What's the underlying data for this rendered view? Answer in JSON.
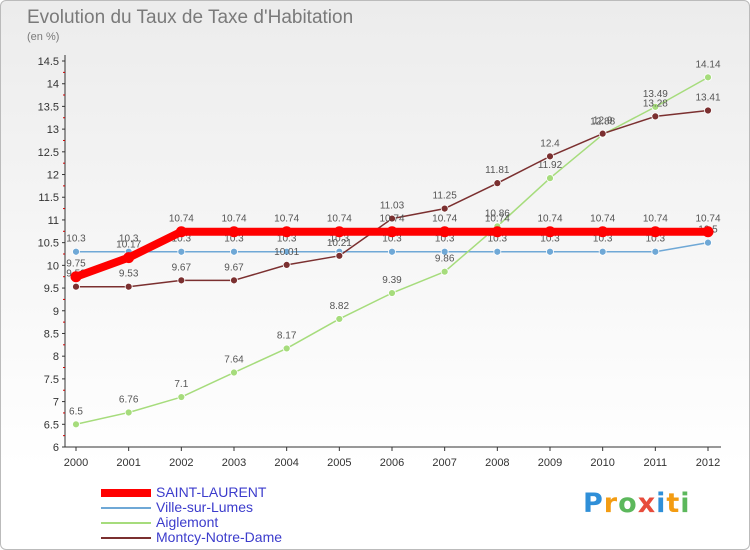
{
  "title": "Evolution du Taux de Taxe d'Habitation",
  "subtitle": "(en %)",
  "logo": {
    "letters": [
      "P",
      "r",
      "o",
      "x",
      "i",
      "t",
      "i"
    ],
    "colors": [
      "#2f8fd8",
      "#f39c12",
      "#5cb85c",
      "#e74c3c",
      "#2f8fd8",
      "#f39c12",
      "#5cb85c"
    ]
  },
  "chart_data": {
    "type": "line",
    "title": "Evolution du Taux de Taxe d'Habitation",
    "ylabel": "(en %)",
    "x": [
      "2000",
      "2001",
      "2002",
      "2003",
      "2004",
      "2005",
      "2006",
      "2007",
      "2008",
      "2009",
      "2010",
      "2011",
      "2012"
    ],
    "ylim": [
      6,
      14.5
    ],
    "yticks": [
      "6",
      "6.5",
      "7",
      "7.5",
      "8",
      "8.5",
      "9",
      "9.5",
      "10",
      "10.5",
      "11",
      "11.5",
      "12",
      "12.5",
      "13",
      "13.5",
      "14",
      "14.5"
    ],
    "grid": false,
    "legend": "bottom-left",
    "series": [
      {
        "name": "SAINT-LAURENT",
        "color": "#ff0000",
        "values": [
          9.75,
          10.17,
          10.74,
          10.74,
          10.74,
          10.74,
          10.74,
          10.74,
          10.74,
          10.74,
          10.74,
          10.74,
          10.74
        ],
        "labels": [
          "9.75",
          "10.17",
          "10.74",
          "10.74",
          "10.74",
          "10.74",
          "10.74",
          "10.74",
          "10.74",
          "10.74",
          "10.74",
          "10.74",
          "10.74"
        ]
      },
      {
        "name": "Ville-sur-Lumes",
        "color": "#6fa8d6",
        "values": [
          10.3,
          10.3,
          10.3,
          10.3,
          10.3,
          10.3,
          10.3,
          10.3,
          10.3,
          10.3,
          10.3,
          10.3,
          10.5
        ],
        "labels": [
          "10.3",
          "10.3",
          "10.3",
          "10.3",
          "10.3",
          "10.3",
          "10.3",
          "10.3",
          "10.3",
          "10.3",
          "10.3",
          "10.3",
          "10.5"
        ]
      },
      {
        "name": "Aiglemont",
        "color": "#a6dc7c",
        "values": [
          6.5,
          6.76,
          7.1,
          7.64,
          8.17,
          8.82,
          9.39,
          9.86,
          10.86,
          11.92,
          12.88,
          13.49,
          14.14
        ],
        "labels": [
          "6.5",
          "6.76",
          "7.1",
          "7.64",
          "8.17",
          "8.82",
          "9.39",
          "9.86",
          "10.86",
          "11.92",
          "12.88",
          "13.49",
          "14.14"
        ]
      },
      {
        "name": "Montcy-Notre-Dame",
        "color": "#7b3030",
        "values": [
          9.53,
          9.53,
          9.67,
          9.67,
          10.01,
          10.21,
          11.03,
          11.25,
          11.81,
          12.4,
          12.9,
          13.28,
          13.41
        ],
        "labels": [
          "9.53",
          "9.53",
          "9.67",
          "9.67",
          "10.01",
          "10.21",
          "11.03",
          "11.25",
          "11.81",
          "12.4",
          "12.9",
          "13.28",
          "13.41"
        ]
      }
    ]
  }
}
